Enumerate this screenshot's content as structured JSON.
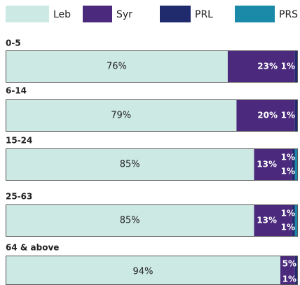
{
  "chart_data": {
    "type": "stacked-bar-horizontal",
    "categories": [
      "0-5",
      "6-14",
      "15-24",
      "25-63",
      "64 & above"
    ],
    "series": [
      {
        "name": "Leb",
        "color": "#cde9e4",
        "values": [
          76,
          79,
          85,
          85,
          94
        ],
        "value_labels": [
          "76%",
          "79%",
          "85%",
          "85%",
          "94%"
        ]
      },
      {
        "name": "Syr",
        "color": "#4b2a7d",
        "values": [
          23,
          20,
          13,
          13,
          5
        ],
        "value_labels": [
          "23%",
          "20%",
          "13%",
          "13%",
          "5%"
        ]
      },
      {
        "name": "PRL",
        "color": "#202b6e",
        "values": [
          1,
          1,
          1,
          1,
          1
        ],
        "value_labels": [
          "1%",
          "1%",
          "1%",
          "1%",
          "1%"
        ]
      },
      {
        "name": "PRS",
        "color": "#1a8aa8",
        "values": [
          null,
          null,
          1,
          1,
          null
        ],
        "value_labels": [
          null,
          null,
          "1%",
          "1%",
          null
        ]
      }
    ],
    "xlim": [
      0,
      100
    ]
  }
}
